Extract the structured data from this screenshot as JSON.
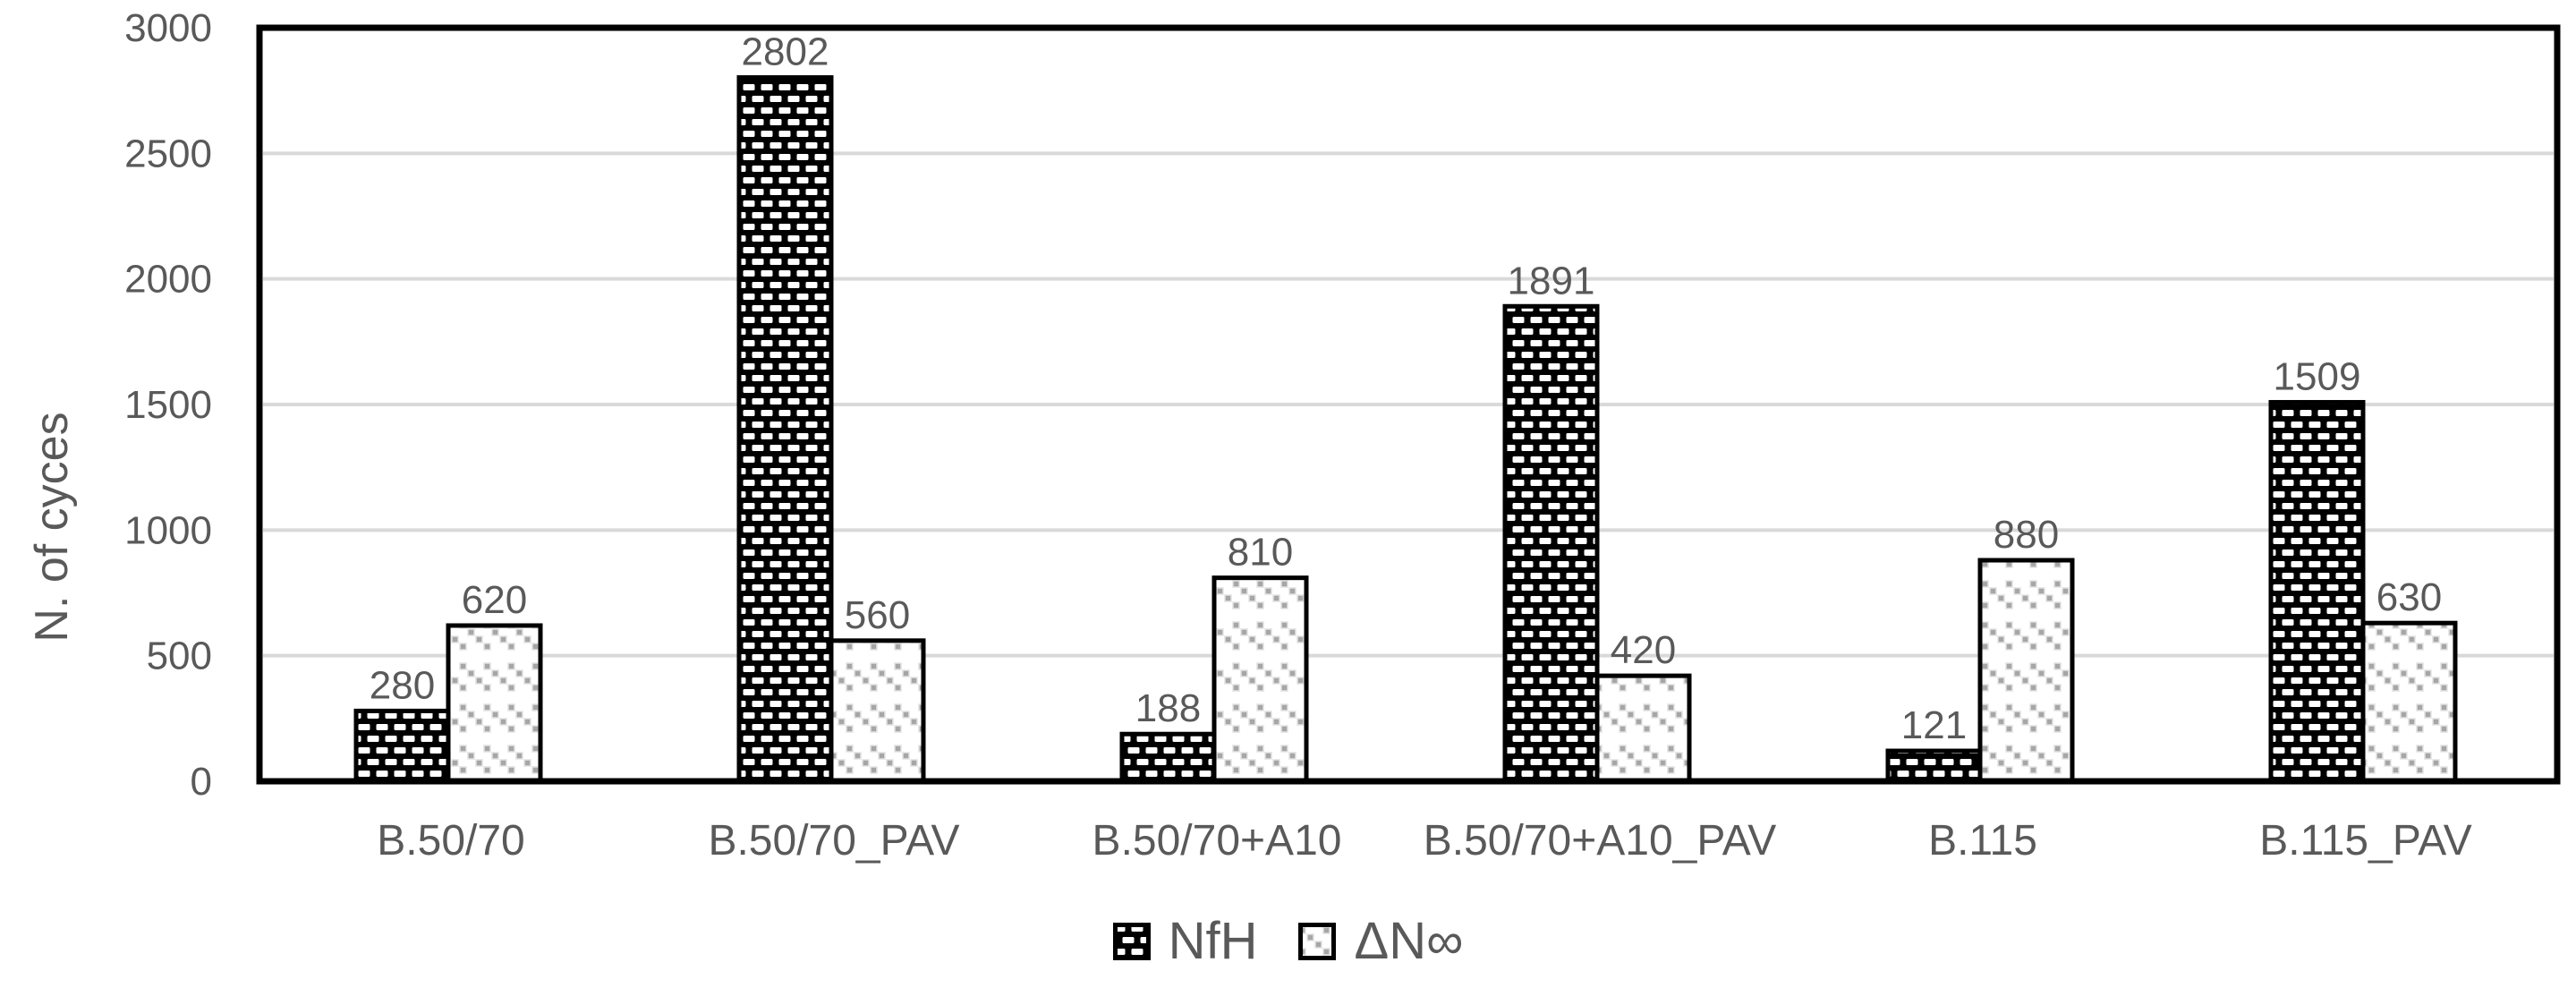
{
  "chart_data": {
    "type": "bar",
    "title": "",
    "categories": [
      "B.50/70",
      "B.50/70_PAV",
      "B.50/70+A10",
      "B.50/70+A10_PAV",
      "B.115",
      "B.115_PAV"
    ],
    "series": [
      {
        "name": "NfH",
        "pattern": "black-with-white-dash-brick",
        "values": [
          280,
          2802,
          188,
          1891,
          121,
          1509
        ]
      },
      {
        "name": "ΔN∞",
        "pattern": "white-with-gray-diagonal-dots",
        "values": [
          620,
          560,
          810,
          420,
          880,
          630
        ]
      }
    ],
    "bar_value_labels": true,
    "xlabel": "",
    "ylabel": "N. of cyces",
    "ylim": [
      0,
      3000
    ],
    "yticks": [
      0,
      500,
      1000,
      1500,
      2000,
      2500,
      3000
    ],
    "grid": "horizontal",
    "legend_position": "bottom",
    "colors": {
      "text": "#595959",
      "gridline": "#d9d9d9",
      "axis_border": "#000000",
      "nfh_background": "#000000",
      "nfh_dash": "#ffffff",
      "dn_dot": "#a6a6a6",
      "dn_background": "#ffffff"
    }
  }
}
